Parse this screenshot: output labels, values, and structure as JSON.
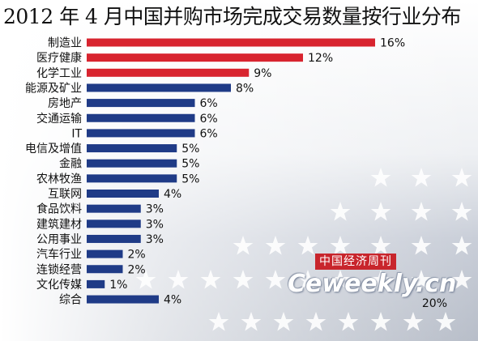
{
  "title": "2012 年 4 月中国并购市场完成交易数量按行业分布",
  "watermark": {
    "logo_text": "中国经济周刊",
    "site_text": "Ceweekly.cn"
  },
  "colors": {
    "highlight": "#d8242f",
    "normal": "#1f3b87",
    "background_gray": "#c9cdd6"
  },
  "chart_data": {
    "type": "bar",
    "orientation": "horizontal",
    "title": "2012 年 4 月中国并购市场完成交易数量按行业分布",
    "categories": [
      "制造业",
      "医疗健康",
      "化学工业",
      "能源及矿业",
      "房地产",
      "交通运输",
      "IT",
      "电信及增值",
      "金融",
      "农林牧渔",
      "互联网",
      "食品饮料",
      "建筑建材",
      "公用事业",
      "汽车行业",
      "连锁经营",
      "文化传媒",
      "综合"
    ],
    "values": [
      16,
      12,
      9,
      8,
      6,
      6,
      6,
      5,
      5,
      5,
      4,
      3,
      3,
      3,
      2,
      2,
      1,
      4
    ],
    "value_labels": [
      "16%",
      "12%",
      "9%",
      "8%",
      "6%",
      "6%",
      "6%",
      "5%",
      "5%",
      "5%",
      "4%",
      "3%",
      "3%",
      "3%",
      "2%",
      "2%",
      "1%",
      "4%"
    ],
    "highlighted": [
      true,
      true,
      true,
      false,
      false,
      false,
      false,
      false,
      false,
      false,
      false,
      false,
      false,
      false,
      false,
      false,
      false,
      false
    ],
    "xlim": [
      0,
      20
    ],
    "axis_max_label": "20%",
    "grid": false,
    "legend": "none"
  }
}
